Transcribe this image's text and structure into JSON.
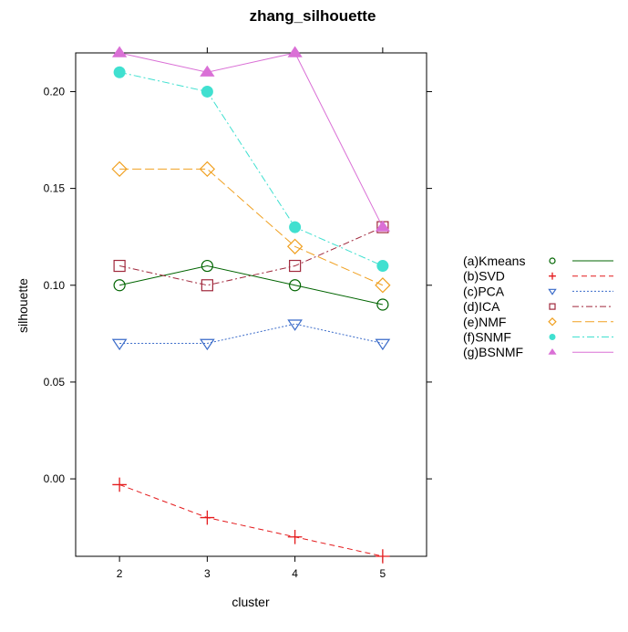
{
  "chart_data": {
    "type": "line",
    "title": "zhang_silhouette",
    "xlabel": "cluster",
    "ylabel": "silhouette",
    "x": [
      2,
      3,
      4,
      5
    ],
    "xlim": [
      1.5,
      5.5
    ],
    "ylim": [
      -0.04,
      0.22
    ],
    "xticks": [
      "2",
      "3",
      "4",
      "5"
    ],
    "yticks": [
      "0.00",
      "0.05",
      "0.10",
      "0.15",
      "0.20"
    ],
    "grid": false,
    "legend_position": "right",
    "series": [
      {
        "name": "(a)Kmeans",
        "values": [
          0.1,
          0.11,
          0.1,
          0.09
        ],
        "color": "#006400",
        "marker": "circle-open",
        "dash": ""
      },
      {
        "name": "(b)SVD",
        "values": [
          -0.003,
          -0.02,
          -0.03,
          -0.04
        ],
        "color": "#e41a1c",
        "marker": "plus",
        "dash": "6,4"
      },
      {
        "name": "(c)PCA",
        "values": [
          0.07,
          0.07,
          0.08,
          0.07
        ],
        "color": "#3a6bc9",
        "marker": "triangle-down-open",
        "dash": "2,2"
      },
      {
        "name": "(d)ICA",
        "values": [
          0.11,
          0.1,
          0.11,
          0.13
        ],
        "color": "#a0283c",
        "marker": "square-open",
        "dash": "7,3,2,3"
      },
      {
        "name": "(e)NMF",
        "values": [
          0.16,
          0.16,
          0.12,
          0.1
        ],
        "color": "#f0a020",
        "marker": "diamond-open",
        "dash": "10,4"
      },
      {
        "name": "(f)SNMF",
        "values": [
          0.21,
          0.2,
          0.13,
          0.11
        ],
        "color": "#40e0d0",
        "marker": "circle-filled",
        "dash": "8,3,2,3"
      },
      {
        "name": "(g)BSNMF",
        "values": [
          0.22,
          0.21,
          0.22,
          0.13
        ],
        "color": "#da70d6",
        "marker": "triangle-up-filled",
        "dash": ""
      }
    ]
  }
}
